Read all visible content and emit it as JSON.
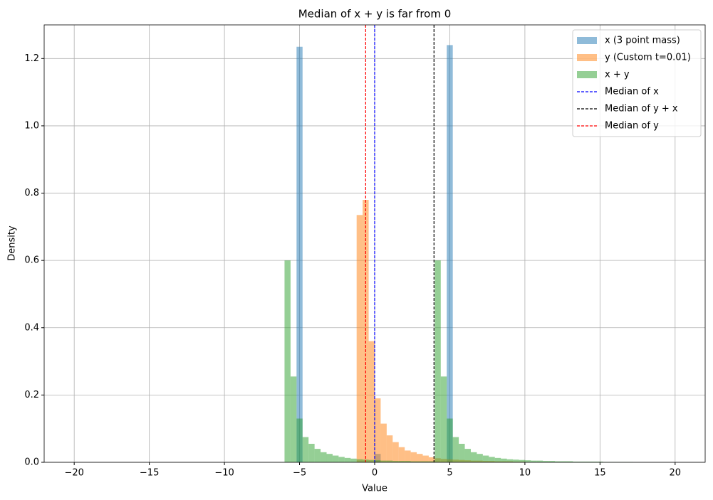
{
  "chart_data": {
    "type": "histogram",
    "title": "Median of x + y is far from 0",
    "x_label": "Value",
    "y_label": "Density",
    "xlim": [
      -22,
      22
    ],
    "ylim": [
      0,
      1.3
    ],
    "xticks": [
      {
        "value": -20,
        "label": "−20"
      },
      {
        "value": -15,
        "label": "−15"
      },
      {
        "value": -10,
        "label": "−10"
      },
      {
        "value": -5,
        "label": "−5"
      },
      0,
      5,
      10,
      15,
      20
    ],
    "yticks": [
      {
        "value": 0,
        "label": "0.0"
      },
      0.2,
      0.4,
      0.6,
      0.8,
      {
        "value": 1,
        "label": "1.0"
      },
      1.2
    ],
    "grid": true,
    "legend": "upper right",
    "alpha": 0.5,
    "series": [
      {
        "name": "x (3 point mass)",
        "color": "#1f77b4",
        "bins": [
          -5.2,
          -4.8,
          -4.4,
          -4,
          -3.6,
          -3.2,
          -2.8,
          -2.4,
          -2,
          -1.6,
          -1.2,
          -0.8,
          -0.4,
          0,
          0.4,
          0.8,
          1.2,
          1.6,
          2,
          2.4,
          2.8,
          3.2,
          3.6,
          4,
          4.4,
          4.8,
          5.2
        ],
        "values": [
          1.235,
          0,
          0,
          0,
          0,
          0,
          0,
          0,
          0,
          0,
          0,
          0,
          0,
          0.025,
          0,
          0,
          0,
          0,
          0,
          0,
          0,
          0,
          0,
          0,
          0,
          1.24
        ]
      },
      {
        "name": "y (Custom t=0.01)",
        "color": "#ff7f0e",
        "bins": [
          -1.2,
          -0.8,
          -0.4,
          0,
          0.4,
          0.8,
          1.2,
          1.6,
          2,
          2.4,
          2.8,
          3.2,
          3.6,
          4,
          4.4,
          4.8,
          5.2,
          5.6,
          6,
          6.4,
          6.8,
          7.2,
          7.6,
          8,
          8.4,
          8.8,
          9.2,
          9.6,
          10
        ],
        "values": [
          0.735,
          0.78,
          0.36,
          0.19,
          0.115,
          0.08,
          0.06,
          0.045,
          0.035,
          0.03,
          0.025,
          0.02,
          0.015,
          0.012,
          0.01,
          0.009,
          0.008,
          0.007,
          0.006,
          0.005,
          0.005,
          0.004,
          0.004,
          0.003,
          0.003,
          0.003,
          0.002,
          0.002
        ]
      },
      {
        "name": "x + y",
        "color": "#2ca02c",
        "bins": [
          -6,
          -5.6,
          -5.2,
          -4.8,
          -4.4,
          -4,
          -3.6,
          -3.2,
          -2.8,
          -2.4,
          -2,
          -1.6,
          -1.2,
          -0.8,
          -0.4,
          0,
          0.4,
          0.8,
          1.2,
          1.6,
          2,
          2.4,
          2.8,
          3.2,
          3.6,
          4,
          4.4,
          4.8,
          5.2,
          5.6,
          6,
          6.4,
          6.8,
          7.2,
          7.6,
          8,
          8.4,
          8.8,
          9.2,
          9.6,
          10,
          10.4,
          10.8,
          11.2,
          11.6,
          12,
          12.4,
          12.8,
          13.2,
          13.6,
          14,
          14.4,
          14.8,
          15.2,
          15.6,
          16,
          16.4,
          16.8,
          17.2
        ],
        "values": [
          0.6,
          0.255,
          0.13,
          0.075,
          0.055,
          0.04,
          0.03,
          0.025,
          0.02,
          0.016,
          0.013,
          0.011,
          0.009,
          0.008,
          0.007,
          0.006,
          0.005,
          0.005,
          0.004,
          0.004,
          0.004,
          0.003,
          0.003,
          0.003,
          0.003,
          0.6,
          0.255,
          0.13,
          0.075,
          0.055,
          0.04,
          0.03,
          0.025,
          0.02,
          0.016,
          0.013,
          0.011,
          0.009,
          0.008,
          0.007,
          0.006,
          0.005,
          0.005,
          0.004,
          0.004,
          0.003,
          0.003,
          0.003,
          0.002,
          0.002,
          0.002,
          0.002,
          0.002,
          0.001,
          0.001,
          0.001,
          0.001,
          0.001
        ]
      }
    ],
    "vlines": [
      {
        "name": "Median of x",
        "value": 0,
        "color": "#0000ff"
      },
      {
        "name": "Median of y + x",
        "value": 3.95,
        "color": "#000000"
      },
      {
        "name": "Median of y",
        "value": -0.6,
        "color": "#ff0000"
      }
    ]
  }
}
